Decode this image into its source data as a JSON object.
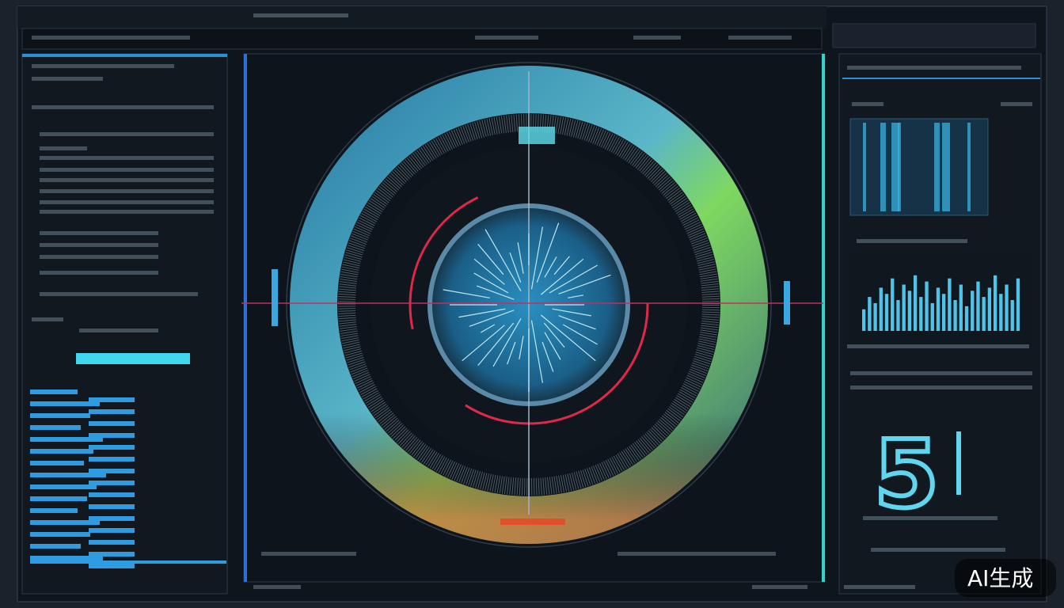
{
  "watermark": "AI生成",
  "readout": {
    "value": "5"
  },
  "histogram": {
    "color": "#4fc3e8",
    "values": [
      35,
      55,
      45,
      70,
      60,
      85,
      50,
      75,
      65,
      90,
      55,
      80,
      45,
      70,
      60,
      85,
      50,
      75,
      40,
      65,
      80,
      55,
      70,
      90,
      60,
      75,
      50,
      85
    ]
  }
}
